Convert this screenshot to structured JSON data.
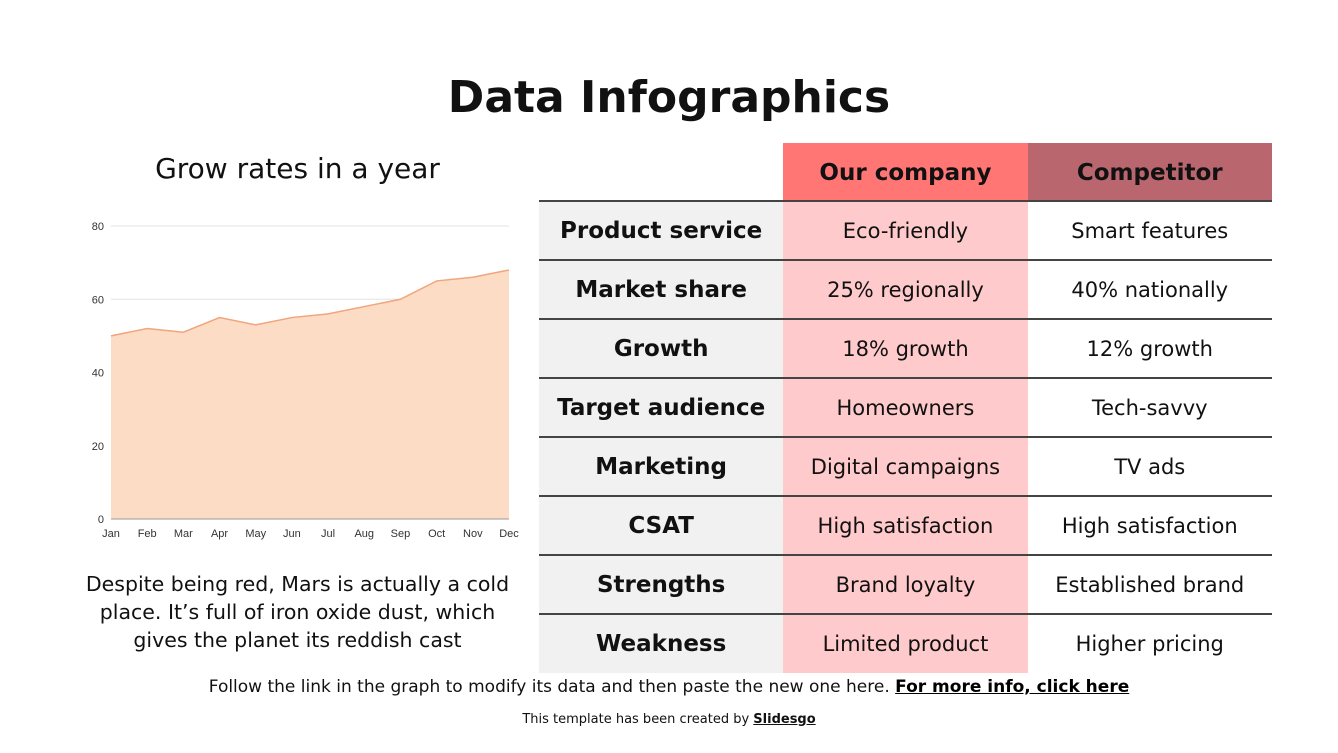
{
  "title": "Data Infographics",
  "chart_data": {
    "type": "area",
    "title": "Grow rates in a year",
    "categories": [
      "Jan",
      "Feb",
      "Mar",
      "Apr",
      "May",
      "Jun",
      "Jul",
      "Aug",
      "Sep",
      "Oct",
      "Nov",
      "Dec"
    ],
    "values": [
      50,
      52,
      51,
      55,
      53,
      55,
      56,
      58,
      60,
      65,
      66,
      68
    ],
    "ylim": [
      0,
      80
    ],
    "yticks": [
      0,
      20,
      40,
      60,
      80
    ],
    "grid": true,
    "fill_color": "#fddcc6",
    "line_color": "#f0a57c"
  },
  "description": "Despite being red, Mars is actually a cold place. It’s full of iron oxide dust, which gives the planet its reddish cast",
  "table": {
    "headers": [
      "",
      "Our company",
      "Competitor"
    ],
    "header_colors": {
      "our": "#ff7675",
      "competitor": "#b9666f"
    },
    "rows": [
      [
        "Product service",
        "Eco-friendly",
        "Smart features"
      ],
      [
        "Market share",
        "25% regionally",
        "40% nationally"
      ],
      [
        "Growth",
        "18% growth",
        "12% growth"
      ],
      [
        "Target audience",
        "Homeowners",
        "Tech-savvy"
      ],
      [
        "Marketing",
        "Digital campaigns",
        "TV ads"
      ],
      [
        "CSAT",
        "High satisfaction",
        "High satisfaction"
      ],
      [
        "Strengths",
        "Brand loyalty",
        "Established brand"
      ],
      [
        "Weakness",
        "Limited product",
        "Higher pricing"
      ]
    ]
  },
  "footer": {
    "text": "Follow the link in the graph to modify its data and then paste the new one here.",
    "link": "For more info, click here"
  },
  "credit": {
    "text": "This template has been created by",
    "brand": "Slidesgo"
  }
}
